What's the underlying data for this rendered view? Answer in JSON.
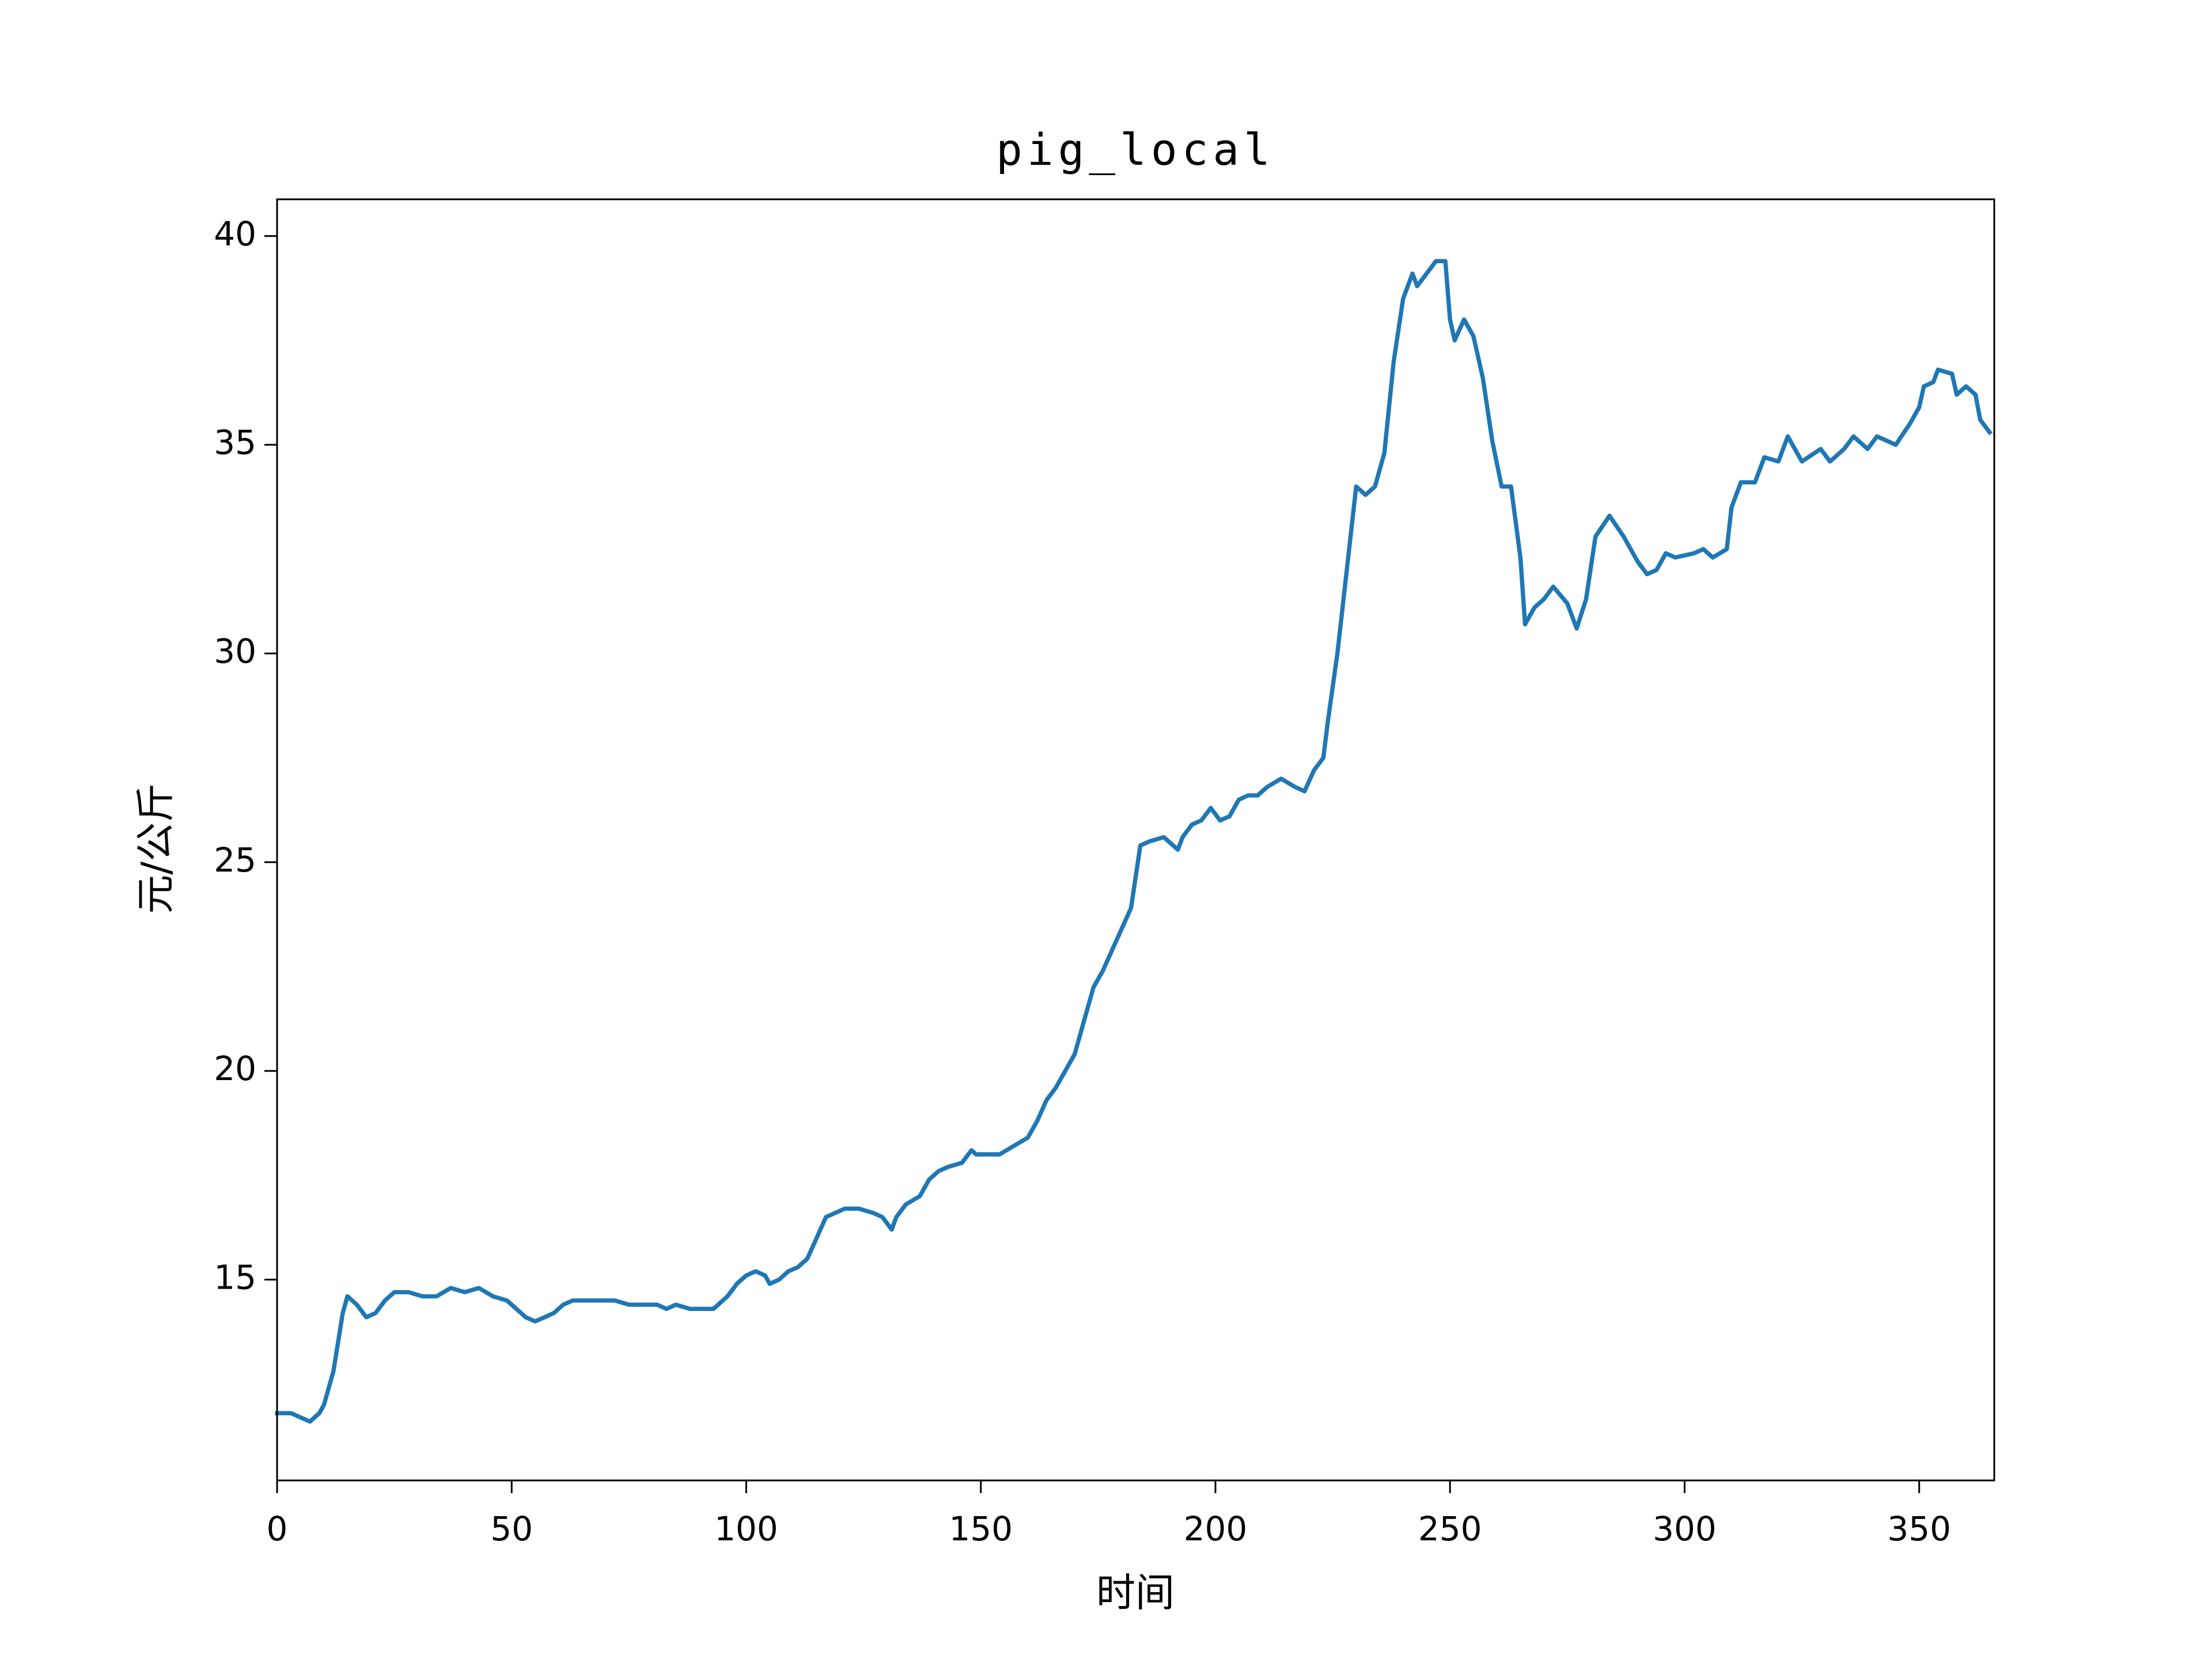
{
  "chart_data": {
    "type": "line",
    "title": "pig_local",
    "xlabel": "时间",
    "ylabel": "元/公斤",
    "color": "#1f77b4",
    "x": [
      0,
      3,
      5,
      7,
      9,
      10,
      12,
      13,
      14,
      15,
      17,
      19,
      21,
      23,
      25,
      28,
      31,
      34,
      37,
      40,
      43,
      46,
      49,
      51,
      53,
      55,
      57,
      59,
      61,
      63,
      66,
      69,
      72,
      75,
      78,
      81,
      83,
      85,
      88,
      91,
      93,
      96,
      98,
      100,
      102,
      104,
      105,
      107,
      109,
      111,
      113,
      115,
      117,
      119,
      121,
      124,
      127,
      129,
      131,
      132,
      134,
      137,
      139,
      141,
      143,
      146,
      148,
      149,
      151,
      154,
      157,
      160,
      162,
      164,
      166,
      168,
      170,
      172,
      174,
      176,
      178,
      180,
      182,
      184,
      186,
      189,
      192,
      193,
      195,
      197,
      199,
      201,
      203,
      205,
      207,
      209,
      211,
      214,
      217,
      219,
      221,
      223,
      224,
      226,
      228,
      230,
      232,
      234,
      236,
      238,
      240,
      242,
      243,
      245,
      247,
      249,
      250,
      251,
      253,
      255,
      257,
      259,
      261,
      263,
      265,
      266,
      268,
      270,
      272,
      275,
      277,
      279,
      281,
      284,
      287,
      290,
      292,
      294,
      296,
      298,
      302,
      304,
      306,
      309,
      310,
      312,
      315,
      317,
      320,
      322,
      325,
      329,
      331,
      334,
      336,
      339,
      341,
      345,
      348,
      350,
      351,
      353,
      354,
      357,
      358,
      360,
      362,
      363,
      365
    ],
    "values": [
      11.8,
      11.8,
      11.7,
      11.6,
      11.8,
      12.0,
      12.8,
      13.5,
      14.2,
      14.6,
      14.4,
      14.1,
      14.2,
      14.5,
      14.7,
      14.7,
      14.6,
      14.6,
      14.8,
      14.7,
      14.8,
      14.6,
      14.5,
      14.3,
      14.1,
      14.0,
      14.1,
      14.2,
      14.4,
      14.5,
      14.5,
      14.5,
      14.5,
      14.4,
      14.4,
      14.4,
      14.3,
      14.4,
      14.3,
      14.3,
      14.3,
      14.6,
      14.9,
      15.1,
      15.2,
      15.1,
      14.9,
      15.0,
      15.2,
      15.3,
      15.5,
      16.0,
      16.5,
      16.6,
      16.7,
      16.7,
      16.6,
      16.5,
      16.2,
      16.5,
      16.8,
      17.0,
      17.4,
      17.6,
      17.7,
      17.8,
      18.1,
      18.0,
      18.0,
      18.0,
      18.2,
      18.4,
      18.8,
      19.3,
      19.6,
      20.0,
      20.4,
      21.2,
      22.0,
      22.4,
      22.9,
      23.4,
      23.9,
      25.4,
      25.5,
      25.6,
      25.3,
      25.6,
      25.9,
      26.0,
      26.3,
      26.0,
      26.1,
      26.5,
      26.6,
      26.6,
      26.8,
      27.0,
      26.8,
      26.7,
      27.2,
      27.5,
      28.4,
      30.0,
      32.0,
      34.0,
      33.8,
      34.0,
      34.8,
      37.0,
      38.5,
      39.1,
      38.8,
      39.1,
      39.4,
      39.4,
      38.0,
      37.5,
      38.0,
      37.6,
      36.6,
      35.1,
      34.0,
      34.0,
      32.3,
      30.7,
      31.1,
      31.3,
      31.6,
      31.2,
      30.6,
      31.3,
      32.8,
      33.3,
      32.8,
      32.2,
      31.9,
      32.0,
      32.4,
      32.3,
      32.4,
      32.5,
      32.3,
      32.5,
      33.5,
      34.1,
      34.1,
      34.7,
      34.6,
      35.2,
      34.6,
      34.9,
      34.6,
      34.9,
      35.2,
      34.9,
      35.2,
      35.0,
      35.5,
      35.9,
      36.4,
      36.5,
      36.8,
      36.7,
      36.2,
      36.4,
      36.2,
      35.6,
      35.3
    ],
    "xlim": [
      0,
      366
    ],
    "ylim": [
      10.19,
      40.88
    ],
    "xticks": [
      0,
      50,
      100,
      150,
      200,
      250,
      300,
      350
    ],
    "yticks": [
      15,
      20,
      25,
      30,
      35,
      40
    ]
  }
}
